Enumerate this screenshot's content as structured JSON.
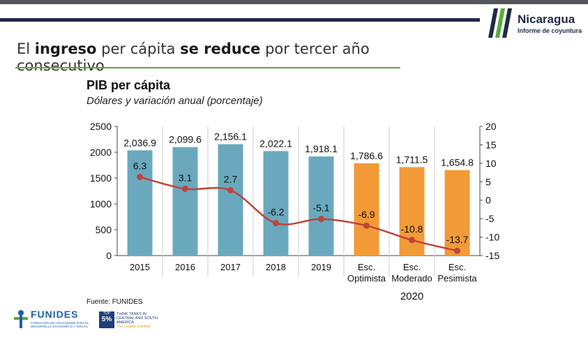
{
  "header": {
    "headline_parts": [
      {
        "text": "El ",
        "bold": false
      },
      {
        "text": "ingreso",
        "bold": true
      },
      {
        "text": " per cápita ",
        "bold": false
      },
      {
        "text": "se reduce",
        "bold": true
      },
      {
        "text": " por tercer año consecutivo",
        "bold": false
      }
    ],
    "logo_brand": "Nicaragua",
    "logo_sub": "Informe de coyuntura"
  },
  "footer": {
    "source": "Fuente: FUNIDES",
    "funides_name": "FUNIDES",
    "funides_tagline": "FUNDACIÓN NICARAGÜENSE PARA EL DESARROLLO ECONÓMICO Y SOCIAL",
    "ttt_top": "TOP",
    "ttt_pct": "5%",
    "ttt_text": "THINK TANKS IN CENTRAL AND SOUTH AMERICA",
    "ttt_tag": "The Lauder Institute"
  },
  "colors": {
    "bar_historic": "#6aa9bd",
    "bar_scenario": "#f29a37",
    "line": "#c0433a",
    "accent_green": "#5bab3a",
    "navy": "#1f2a44"
  },
  "chart_data": {
    "type": "bar",
    "title": "PIB per cápita",
    "subtitle": "Dólares y variación anual (porcentaje)",
    "categories": [
      "2015",
      "2016",
      "2017",
      "2018",
      "2019",
      "Esc.\nOptimista",
      "Esc.\nModerado",
      "Esc.\nPesimista"
    ],
    "group_label": "2020",
    "series": [
      {
        "kind": "bar",
        "axis": "left",
        "values": [
          2036.9,
          2099.6,
          2156.1,
          2022.1,
          1918.1,
          1786.6,
          1711.5,
          1654.8
        ],
        "labels": [
          "2,036.9",
          "2,099.6",
          "2,156.1",
          "2,022.1",
          "1,918.1",
          "1,786.6",
          "1,711.5",
          "1,654.8"
        ]
      },
      {
        "kind": "line",
        "axis": "right",
        "values": [
          6.3,
          3.1,
          2.7,
          -6.2,
          -5.1,
          -6.9,
          -10.8,
          -13.7
        ],
        "labels": [
          "6.3",
          "3.1",
          "2.7",
          "-6.2",
          "-5.1",
          "-6.9",
          "-10.8",
          "-13.7"
        ]
      }
    ],
    "left_axis": {
      "min": 0,
      "max": 2500,
      "ticks": [
        0,
        500,
        1000,
        1500,
        2000,
        2500
      ]
    },
    "right_axis": {
      "min": -15,
      "max": 20,
      "ticks": [
        -15,
        -10,
        -5,
        0,
        5,
        10,
        15,
        20
      ]
    },
    "grid": "vertical-category-separators",
    "legend": "none"
  }
}
